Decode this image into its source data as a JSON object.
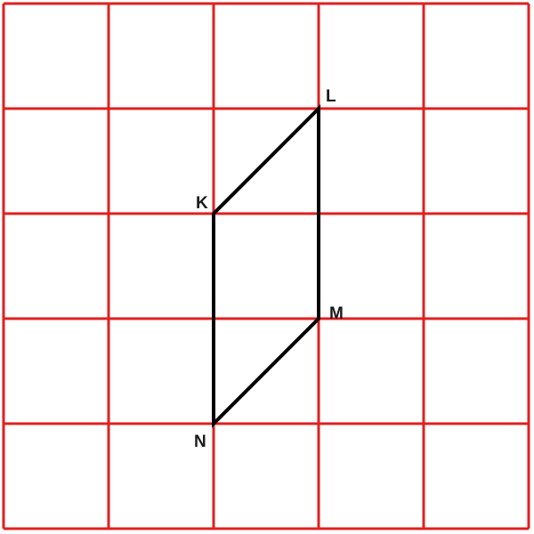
{
  "grid": {
    "rows": 5,
    "cols": 5,
    "line_color": "#e02020"
  },
  "shape": {
    "stroke_color": "#000000",
    "vertices": [
      {
        "label": "K",
        "col": 2,
        "row": 2
      },
      {
        "label": "L",
        "col": 3,
        "row": 1
      },
      {
        "label": "M",
        "col": 3,
        "row": 3
      },
      {
        "label": "N",
        "col": 2,
        "row": 4
      }
    ]
  }
}
